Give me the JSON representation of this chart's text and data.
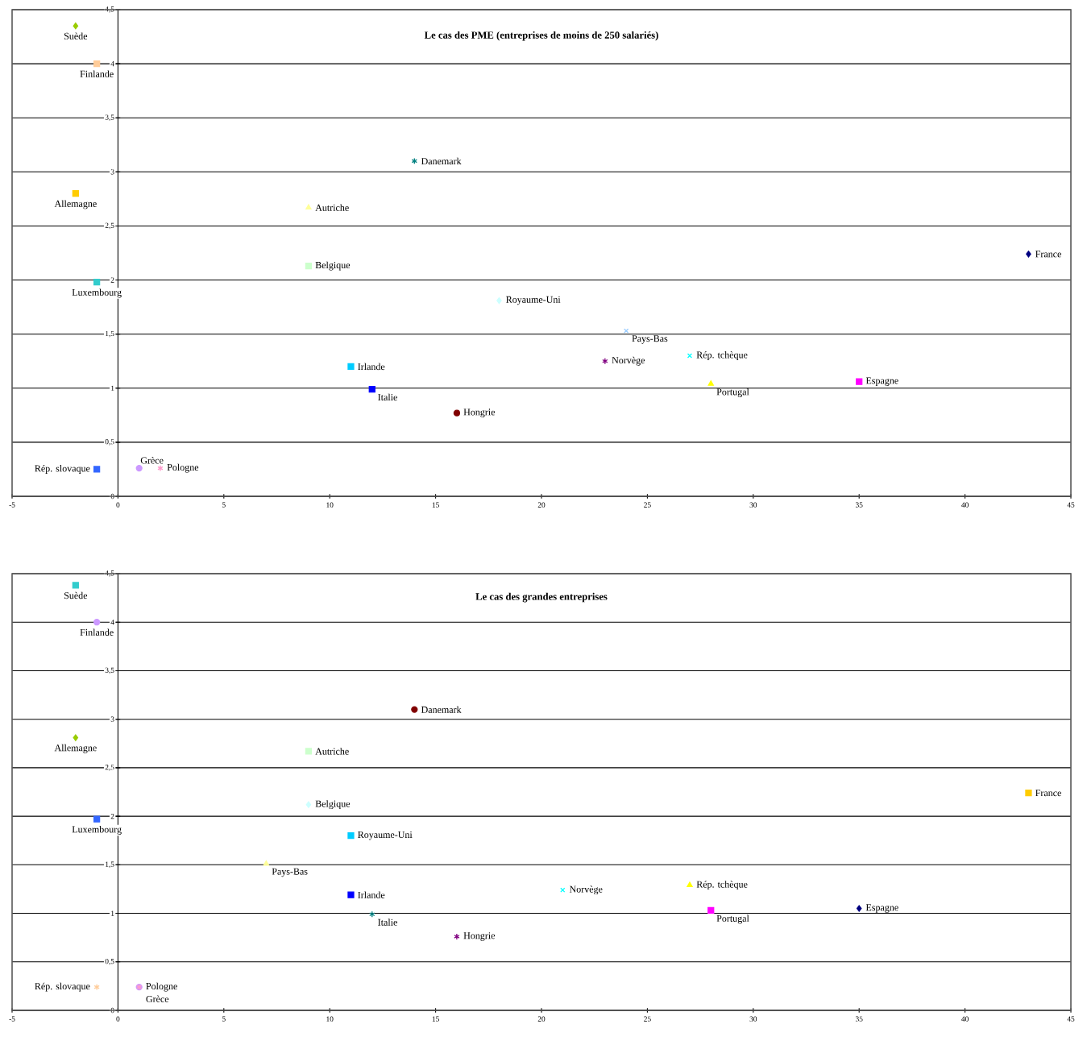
{
  "chart_data": [
    {
      "type": "scatter",
      "title": "Le cas des PME (entreprises de moins de 250 salariés)",
      "xlim": [
        -5,
        45
      ],
      "ylim": [
        0,
        4.5
      ],
      "xticks": [
        -5,
        0,
        5,
        10,
        15,
        20,
        25,
        30,
        35,
        40,
        45
      ],
      "yticks": [
        {
          "value": 0,
          "label": "0"
        },
        {
          "value": 0.5,
          "label": "0,5"
        },
        {
          "value": 1,
          "label": "1"
        },
        {
          "value": 1.5,
          "label": "1,5"
        },
        {
          "value": 2,
          "label": "2"
        },
        {
          "value": 2.5,
          "label": "2,5"
        },
        {
          "value": 3,
          "label": "3"
        },
        {
          "value": 3.5,
          "label": "3,5"
        },
        {
          "value": 4,
          "label": "4"
        },
        {
          "value": 4.5,
          "label": "4,5"
        }
      ],
      "grid": "y",
      "series": [
        {
          "name": "France",
          "color": "#000080",
          "marker": "diamond",
          "x": [
            43
          ],
          "values": [
            2.24
          ]
        },
        {
          "name": "Espagne",
          "color": "#ff00ff",
          "marker": "square",
          "x": [
            35
          ],
          "values": [
            1.06
          ]
        },
        {
          "name": "Portugal",
          "color": "#ffff00",
          "marker": "triangle",
          "x": [
            28
          ],
          "values": [
            1.04
          ]
        },
        {
          "name": "Rép. tchèque",
          "color": "#00ffff",
          "marker": "x",
          "x": [
            27
          ],
          "values": [
            1.3
          ]
        },
        {
          "name": "Norvège",
          "color": "#800080",
          "marker": "cross",
          "x": [
            23
          ],
          "values": [
            1.25
          ]
        },
        {
          "name": "Pays-Bas",
          "color": "#99ccff",
          "marker": "x",
          "x": [
            24
          ],
          "values": [
            1.53
          ]
        },
        {
          "name": "Royaume-Uni",
          "color": "#ccffff",
          "marker": "diamond",
          "x": [
            18
          ],
          "values": [
            1.81
          ]
        },
        {
          "name": "Hongrie",
          "color": "#800000",
          "marker": "circle",
          "x": [
            16
          ],
          "values": [
            0.77
          ]
        },
        {
          "name": "Danemark",
          "color": "#008080",
          "marker": "cross",
          "x": [
            14
          ],
          "values": [
            3.1
          ]
        },
        {
          "name": "Italie",
          "color": "#0000ff",
          "marker": "square",
          "x": [
            12
          ],
          "values": [
            0.99
          ]
        },
        {
          "name": "Irlande",
          "color": "#00ccff",
          "marker": "square",
          "x": [
            11
          ],
          "values": [
            1.2
          ]
        },
        {
          "name": "Autriche",
          "color": "#ffff99",
          "marker": "triangle",
          "x": [
            9
          ],
          "values": [
            2.67
          ]
        },
        {
          "name": "Belgique",
          "color": "#ccffcc",
          "marker": "square",
          "x": [
            9
          ],
          "values": [
            2.13
          ]
        },
        {
          "name": "Grèce",
          "color": "#cc99ff",
          "marker": "circle",
          "x": [
            1
          ],
          "values": [
            0.26
          ]
        },
        {
          "name": "Pologne",
          "color": "#ff99cc",
          "marker": "cross",
          "x": [
            2
          ],
          "values": [
            0.26
          ]
        },
        {
          "name": "Rép. slovaque",
          "color": "#3366ff",
          "marker": "square",
          "x": [
            -1
          ],
          "values": [
            0.25
          ]
        },
        {
          "name": "Luxembourg",
          "color": "#33cccc",
          "marker": "square",
          "x": [
            -1
          ],
          "values": [
            1.98
          ]
        },
        {
          "name": "Finlande",
          "color": "#ffcc99",
          "marker": "square",
          "x": [
            -1
          ],
          "values": [
            4.0
          ]
        },
        {
          "name": "Allemagne",
          "color": "#ffcc00",
          "marker": "square",
          "x": [
            -2
          ],
          "values": [
            2.8
          ]
        },
        {
          "name": "Suède",
          "color": "#99cc00",
          "marker": "diamond",
          "x": [
            -2
          ],
          "values": [
            4.35
          ]
        }
      ]
    },
    {
      "type": "scatter",
      "title": "Le cas des grandes entreprises",
      "xlim": [
        -5,
        45
      ],
      "ylim": [
        0,
        4.5
      ],
      "xticks": [
        -5,
        0,
        5,
        10,
        15,
        20,
        25,
        30,
        35,
        40,
        45
      ],
      "yticks": [
        {
          "value": 0,
          "label": "0"
        },
        {
          "value": 0.5,
          "label": "0,5"
        },
        {
          "value": 1,
          "label": "1"
        },
        {
          "value": 1.5,
          "label": "1,5"
        },
        {
          "value": 2,
          "label": "2"
        },
        {
          "value": 2.5,
          "label": "2,5"
        },
        {
          "value": 3,
          "label": "3"
        },
        {
          "value": 3.5,
          "label": "3,5"
        },
        {
          "value": 4,
          "label": "4"
        },
        {
          "value": 4.5,
          "label": "4,5"
        }
      ],
      "grid": "y",
      "series": [
        {
          "name": "France",
          "color": "#ffcc00",
          "marker": "square",
          "x": [
            43
          ],
          "values": [
            2.24
          ]
        },
        {
          "name": "Espagne",
          "color": "#000080",
          "marker": "diamond",
          "x": [
            35
          ],
          "values": [
            1.05
          ]
        },
        {
          "name": "Portugal",
          "color": "#ff00ff",
          "marker": "square",
          "x": [
            28
          ],
          "values": [
            1.03
          ]
        },
        {
          "name": "Rép. tchèque",
          "color": "#ffff00",
          "marker": "triangle",
          "x": [
            27
          ],
          "values": [
            1.29
          ]
        },
        {
          "name": "Norvège",
          "color": "#00ffff",
          "marker": "x",
          "x": [
            21
          ],
          "values": [
            1.24
          ]
        },
        {
          "name": "Hongrie",
          "color": "#800080",
          "marker": "cross",
          "x": [
            16
          ],
          "values": [
            0.76
          ]
        },
        {
          "name": "Danemark",
          "color": "#800000",
          "marker": "circle",
          "x": [
            14
          ],
          "values": [
            3.1
          ]
        },
        {
          "name": "Italie",
          "color": "#008080",
          "marker": "cross",
          "x": [
            12
          ],
          "values": [
            0.99
          ]
        },
        {
          "name": "Irlande",
          "color": "#0000ff",
          "marker": "square",
          "x": [
            11
          ],
          "values": [
            1.19
          ]
        },
        {
          "name": "Royaume-Uni",
          "color": "#00ccff",
          "marker": "square",
          "x": [
            11
          ],
          "values": [
            1.8
          ]
        },
        {
          "name": "Autriche",
          "color": "#ccffcc",
          "marker": "square",
          "x": [
            9
          ],
          "values": [
            2.67
          ]
        },
        {
          "name": "Belgique",
          "color": "#ccffff",
          "marker": "diamond",
          "x": [
            9
          ],
          "values": [
            2.12
          ]
        },
        {
          "name": "Pays-Bas",
          "color": "#ffff99",
          "marker": "triangle",
          "x": [
            7
          ],
          "values": [
            1.51
          ]
        },
        {
          "name": "Pologne",
          "color": "#cc99ff",
          "marker": "circle",
          "x": [
            1
          ],
          "values": [
            0.24
          ]
        },
        {
          "name": "Grèce",
          "color": "#ff99cc",
          "marker": "cross",
          "x": [
            1
          ],
          "values": [
            0.24
          ]
        },
        {
          "name": "Rép. slovaque",
          "color": "#ffcc99",
          "marker": "cross",
          "x": [
            -1
          ],
          "values": [
            0.24
          ]
        },
        {
          "name": "Luxembourg",
          "color": "#3366ff",
          "marker": "square",
          "x": [
            -1
          ],
          "values": [
            1.97
          ]
        },
        {
          "name": "Finlande",
          "color": "#cc99ff",
          "marker": "circle",
          "x": [
            -1
          ],
          "values": [
            4.0
          ]
        },
        {
          "name": "Allemagne",
          "color": "#99cc00",
          "marker": "diamond",
          "x": [
            -2
          ],
          "values": [
            2.81
          ]
        },
        {
          "name": "Suède",
          "color": "#33cccc",
          "marker": "square",
          "x": [
            -2
          ],
          "values": [
            4.38
          ]
        }
      ]
    }
  ]
}
